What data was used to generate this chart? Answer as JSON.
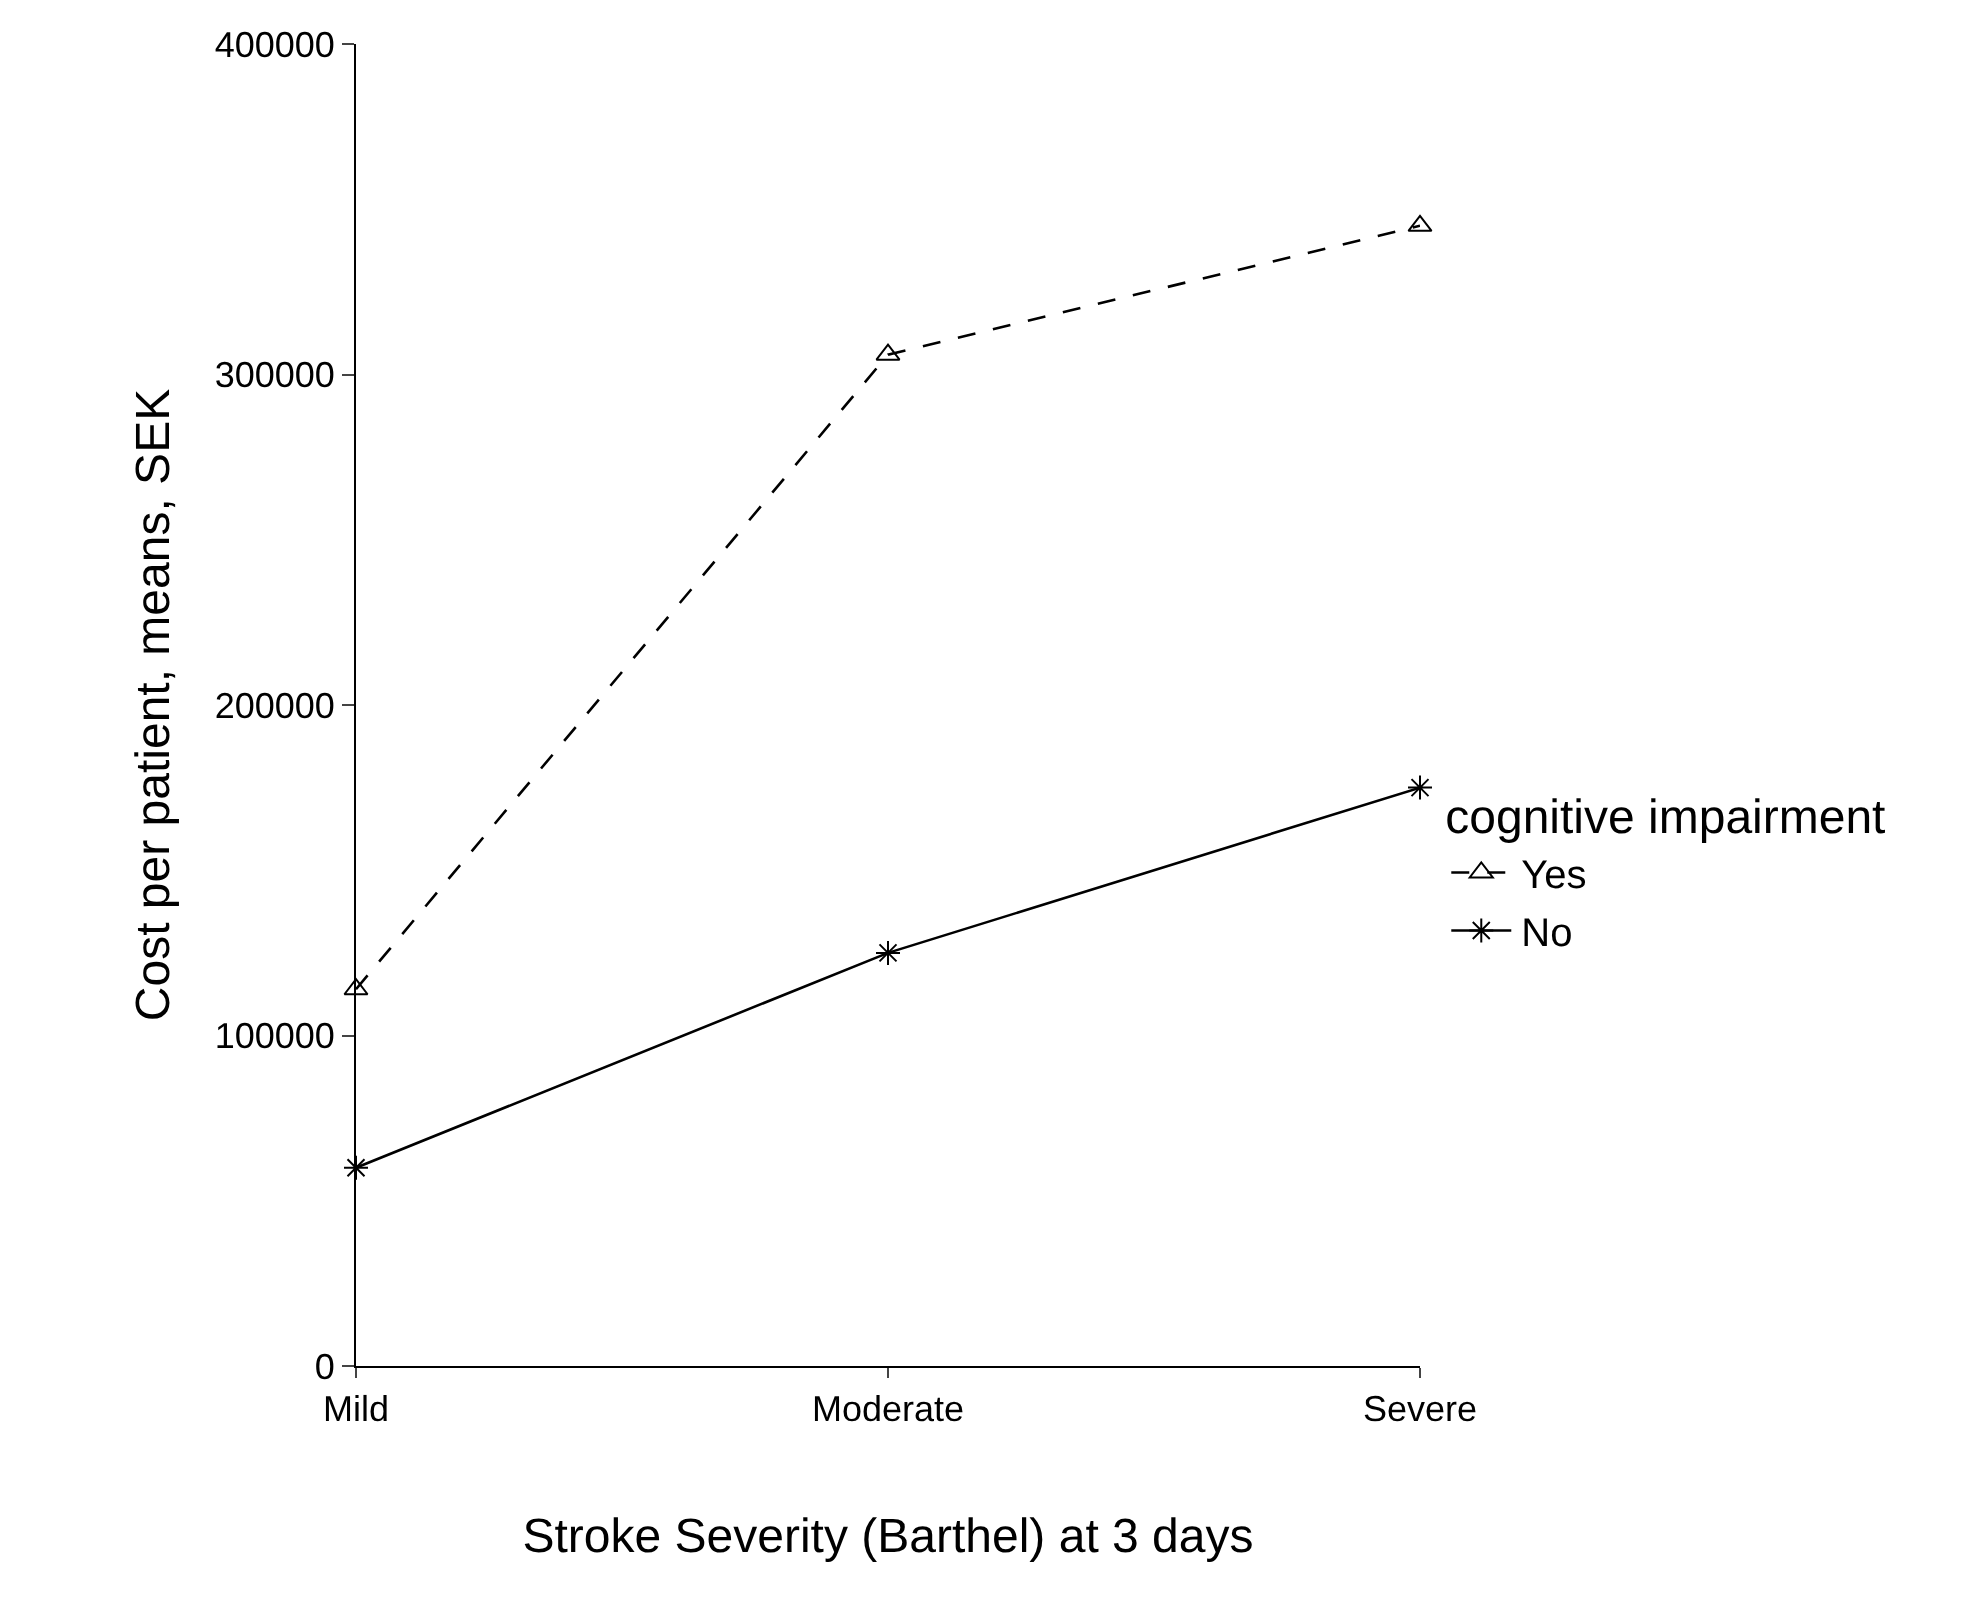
{
  "chart_data": {
    "type": "line",
    "xlabel": "Stroke Severity (Barthel) at 3 days",
    "ylabel": "Cost per patient, means, SEK",
    "legend_title": "cognitive impairment",
    "categories": [
      "Mild",
      "Moderate",
      "Severe"
    ],
    "series": [
      {
        "name": "Yes",
        "color": "#000000",
        "values": [
          114000,
          306000,
          345000
        ],
        "marker": "triangle",
        "line_style": "dashed"
      },
      {
        "name": "No",
        "color": "#000000",
        "values": [
          60000,
          125000,
          175000
        ],
        "marker": "cross",
        "line_style": "solid"
      }
    ],
    "ylim": [
      0,
      400000
    ],
    "yticks": [
      0,
      100000,
      200000,
      300000,
      400000
    ],
    "legend": "right"
  }
}
